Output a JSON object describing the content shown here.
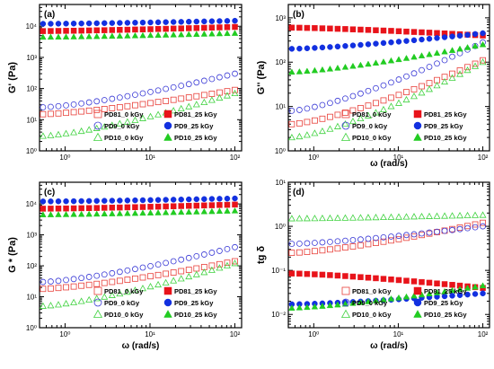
{
  "figure": {
    "series_styles": [
      {
        "name": "PD81_0 kGy",
        "color": "#e8403a",
        "marker": "square",
        "filled": false
      },
      {
        "name": "PD81_25 kGy",
        "color": "#e8131a",
        "marker": "square",
        "filled": true
      },
      {
        "name": "PD9_0 kGy",
        "color": "#3b3bd6",
        "marker": "circle",
        "filled": false
      },
      {
        "name": "PD9_25 kGy",
        "color": "#1230e0",
        "marker": "circle",
        "filled": true
      },
      {
        "name": "PD10_0 kGy",
        "color": "#3fd23f",
        "marker": "triangle",
        "filled": false
      },
      {
        "name": "PD10_25 kGy",
        "color": "#22cc22",
        "marker": "triangle",
        "filled": true
      }
    ]
  },
  "chart_data": [
    {
      "type": "scatter",
      "panel_label": "(a)",
      "xlabel": "",
      "ylabel": "G' (Pa)",
      "xscale": "log",
      "yscale": "log",
      "xlim": [
        0.5,
        120
      ],
      "ylim": [
        1,
        50000
      ],
      "x_ticks": [
        "10⁰",
        "10¹",
        "10²"
      ],
      "y_ticks": [
        "10⁰",
        "10¹",
        "10²",
        "10³",
        "10⁴"
      ],
      "legend": [
        "PD81_0 kGy",
        "PD81_25 kGy",
        "PD9_0 kGy",
        "PD9_25 kGy",
        "PD10_0 kGy",
        "PD10_25 kGy"
      ],
      "legend_position": "bottom-center",
      "series": [
        {
          "name": "PD81_0 kGy",
          "w0": 0.55,
          "v0": 15,
          "w1": 100,
          "v1": 90
        },
        {
          "name": "PD81_25 kGy",
          "w0": 0.55,
          "v0": 7000,
          "w1": 100,
          "v1": 9500
        },
        {
          "name": "PD9_0 kGy",
          "w0": 0.55,
          "v0": 25,
          "w1": 100,
          "v1": 300
        },
        {
          "name": "PD9_25 kGy",
          "w0": 0.55,
          "v0": 12000,
          "w1": 100,
          "v1": 15000
        },
        {
          "name": "PD10_0 kGy",
          "w0": 0.55,
          "v0": 3,
          "w1": 100,
          "v1": 70
        },
        {
          "name": "PD10_25 kGy",
          "w0": 0.55,
          "v0": 4500,
          "w1": 100,
          "v1": 6000
        }
      ]
    },
    {
      "type": "scatter",
      "panel_label": "(b)",
      "xlabel": "ω (rad/s)",
      "ylabel": "G'' (Pa)",
      "xscale": "log",
      "yscale": "log",
      "xlim": [
        0.5,
        120
      ],
      "ylim": [
        1,
        2000
      ],
      "x_ticks": [
        "10⁰",
        "10¹",
        "10²"
      ],
      "y_ticks": [
        "10⁰",
        "10¹",
        "10²",
        "10³"
      ],
      "legend": [
        "PD81_0 kGy",
        "PD81_25 kGy",
        "PD9_0 kGy",
        "PD9_25 kGy",
        "PD10_0 kGy",
        "PD10_25 kGy"
      ],
      "legend_position": "bottom-right",
      "series": [
        {
          "name": "PD81_0 kGy",
          "w0": 0.55,
          "v0": 4,
          "w1": 100,
          "v1": 110
        },
        {
          "name": "PD81_25 kGy",
          "w0": 0.55,
          "v0": 600,
          "w1": 100,
          "v1": 400
        },
        {
          "name": "PD9_0 kGy",
          "w0": 0.55,
          "v0": 8,
          "w1": 100,
          "v1": 280
        },
        {
          "name": "PD9_25 kGy",
          "w0": 0.55,
          "v0": 200,
          "w1": 100,
          "v1": 450
        },
        {
          "name": "PD10_0 kGy",
          "w0": 0.55,
          "v0": 2,
          "w1": 100,
          "v1": 100
        },
        {
          "name": "PD10_25 kGy",
          "w0": 0.55,
          "v0": 60,
          "w1": 100,
          "v1": 250
        }
      ]
    },
    {
      "type": "scatter",
      "panel_label": "(c)",
      "xlabel": "ω (rad/s)",
      "ylabel": "G * (Pa)",
      "xscale": "log",
      "yscale": "log",
      "xlim": [
        0.5,
        120
      ],
      "ylim": [
        1,
        50000
      ],
      "x_ticks": [
        "10⁰",
        "10¹",
        "10²"
      ],
      "y_ticks": [
        "10⁰",
        "10¹",
        "10²",
        "10³",
        "10⁴"
      ],
      "legend": [
        "PD81_0 kGy",
        "PD81_25 kGy",
        "PD9_0 kGy",
        "PD9_25 kGy",
        "PD10_0 kGy",
        "PD10_25 kGy"
      ],
      "legend_position": "bottom-center",
      "series": [
        {
          "name": "PD81_0 kGy",
          "w0": 0.55,
          "v0": 18,
          "w1": 100,
          "v1": 140
        },
        {
          "name": "PD81_25 kGy",
          "w0": 0.55,
          "v0": 7000,
          "w1": 100,
          "v1": 9500
        },
        {
          "name": "PD9_0 kGy",
          "w0": 0.55,
          "v0": 30,
          "w1": 100,
          "v1": 400
        },
        {
          "name": "PD9_25 kGy",
          "w0": 0.55,
          "v0": 12000,
          "w1": 100,
          "v1": 15000
        },
        {
          "name": "PD10_0 kGy",
          "w0": 0.55,
          "v0": 5,
          "w1": 100,
          "v1": 120
        },
        {
          "name": "PD10_25 kGy",
          "w0": 0.55,
          "v0": 4500,
          "w1": 100,
          "v1": 6000
        }
      ]
    },
    {
      "type": "scatter",
      "panel_label": "(d)",
      "xlabel": "ω (rad/s)",
      "ylabel": "tg δ",
      "xscale": "log",
      "yscale": "log",
      "xlim": [
        0.5,
        120
      ],
      "ylim": [
        0.005,
        10
      ],
      "x_ticks": [
        "10⁰",
        "10¹",
        "10²"
      ],
      "y_ticks": [
        "10⁻²",
        "10⁻¹",
        "10⁰",
        "10¹"
      ],
      "legend": [
        "PD81_0 kGy",
        "PD81_25 kGy",
        "PD9_0 kGy",
        "PD9_25 kGy",
        "PD10_0 kGy",
        "PD10_25 kGy"
      ],
      "legend_position": "bottom-right",
      "series": [
        {
          "name": "PD81_0 kGy",
          "w0": 0.55,
          "v0": 0.25,
          "w1": 100,
          "v1": 1.2
        },
        {
          "name": "PD81_25 kGy",
          "w0": 0.55,
          "v0": 0.085,
          "w1": 100,
          "v1": 0.04
        },
        {
          "name": "PD9_0 kGy",
          "w0": 0.55,
          "v0": 0.4,
          "w1": 100,
          "v1": 1.0
        },
        {
          "name": "PD9_25 kGy",
          "w0": 0.55,
          "v0": 0.017,
          "w1": 100,
          "v1": 0.03
        },
        {
          "name": "PD10_0 kGy",
          "w0": 0.55,
          "v0": 1.5,
          "w1": 100,
          "v1": 1.8
        },
        {
          "name": "PD10_25 kGy",
          "w0": 0.55,
          "v0": 0.014,
          "w1": 100,
          "v1": 0.045
        }
      ]
    }
  ]
}
